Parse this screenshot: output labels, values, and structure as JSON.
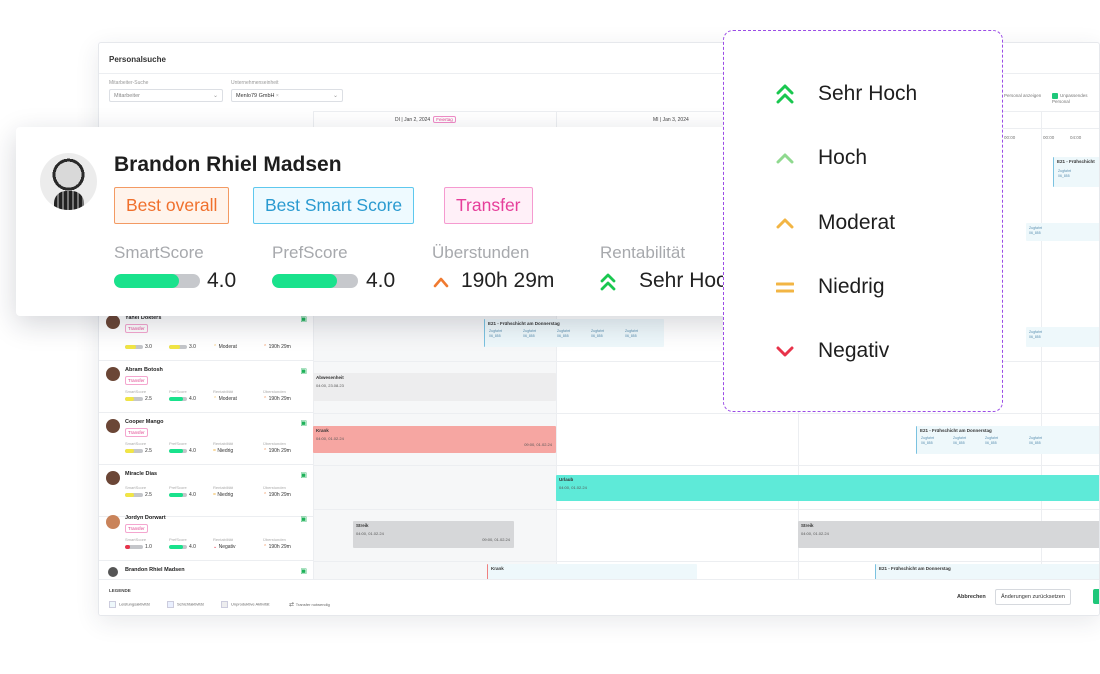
{
  "app": {
    "title": "Personalsuche",
    "filters": {
      "employee_label": "Mitarbeiter-Suche",
      "employee_placeholder": "Mitarbeiter",
      "company_label": "Unternehmenseinheit",
      "company_value": "Menlo79 GmbH"
    },
    "top_right": {
      "option1": "Personal anzeigen",
      "option2": "Unpassendes Personal"
    },
    "days": [
      {
        "label": "DI | Jan 2, 2024",
        "tag": "Feiertag"
      },
      {
        "label": "MI | Jan 3, 2024",
        "tag": ""
      }
    ],
    "hours": [
      "00:00",
      "00:00",
      "04:00"
    ],
    "metric_labels": [
      "SmartScore",
      "PrefScore",
      "Rentabilität",
      "Überstunden"
    ],
    "people": [
      {
        "name": "Yahel Dokters",
        "tag": "Transfer",
        "smart": "3.0",
        "pref": "3.0",
        "rent": "Moderat",
        "over": "190h 29m"
      },
      {
        "name": "Abram Botosh",
        "tag": "Transfer",
        "smart": "2.5",
        "pref": "4.0",
        "rent": "Moderat",
        "over": "190h 29m"
      },
      {
        "name": "Cooper Mango",
        "tag": "Transfer",
        "smart": "2.5",
        "pref": "4.0",
        "rent": "Niedrig",
        "over": "190h 29m"
      },
      {
        "name": "Miracle Dias",
        "tag": "",
        "smart": "2.5",
        "pref": "4.0",
        "rent": "Niedrig",
        "over": "190h 29m"
      },
      {
        "name": "Jordyn Dorwart",
        "tag": "Transfer",
        "smart": "1.0",
        "pref": "4.0",
        "rent": "Negativ",
        "over": "190h 29m"
      },
      {
        "name": "Brandon Rhiel Madsen",
        "tag": "",
        "smart": "",
        "pref": "",
        "rent": "",
        "over": ""
      }
    ],
    "events": {
      "shift_title": "E21 - Frühschicht am Donnerstag",
      "shift_title_short": "E21 - Frühschicht",
      "zugfahrt": "Zugfahrt",
      "zugfahrt_code": "06_855",
      "absence_title": "Abwesenheit",
      "absence_time": "04:00, 23.08.23",
      "sick_title": "Krank",
      "sick_start": "04:00, 01.02.24",
      "sick_end": "09:00, 01.02.24",
      "vacation_title": "Urlaub",
      "vacation_time": "04:00, 01.02.24",
      "strike_title": "Streik",
      "strike_start": "04:00, 01.02.24",
      "strike_end": "09:00, 01.02.24",
      "krank_short": "Krank"
    },
    "legend": {
      "title": "LEGENDE",
      "items": [
        "Leistungsaktivität",
        "Schichtaktivität",
        "Unproduktive Aktivität",
        "Transfer notwendig"
      ]
    },
    "buttons": {
      "cancel": "Abbrechen",
      "reset": "Änderungen zurücksetzen"
    }
  },
  "card": {
    "name": "Brandon Rhiel Madsen",
    "badges": [
      "Best overall",
      "Best Smart Score",
      "Transfer"
    ],
    "smart_label": "SmartScore",
    "smart_value": "4.0",
    "smart_fill": 0.75,
    "pref_label": "PrefScore",
    "pref_value": "4.0",
    "pref_fill": 0.75,
    "overtime_label": "Überstunden",
    "overtime_value": "190h 29m",
    "profit_label": "Rentabilität",
    "profit_value": "Sehr Hoch"
  },
  "levels": [
    {
      "label": "Sehr Hoch",
      "icon": "double-chevron-up-icon",
      "color": "#19c74f"
    },
    {
      "label": "Hoch",
      "icon": "chevron-up-icon",
      "color": "#8fd98f"
    },
    {
      "label": "Moderat",
      "icon": "chevron-up-icon",
      "color": "#f2b544"
    },
    {
      "label": "Niedrig",
      "icon": "equals-icon",
      "color": "#f2b544"
    },
    {
      "label": "Negativ",
      "icon": "chevron-down-icon",
      "color": "#e8334a"
    }
  ],
  "colors": {
    "score_fill": "#19e28c",
    "sick": "#f5a0a0",
    "vacation": "#5eead8",
    "strike": "#d6d7d9",
    "shift": "#e6f6f8"
  }
}
